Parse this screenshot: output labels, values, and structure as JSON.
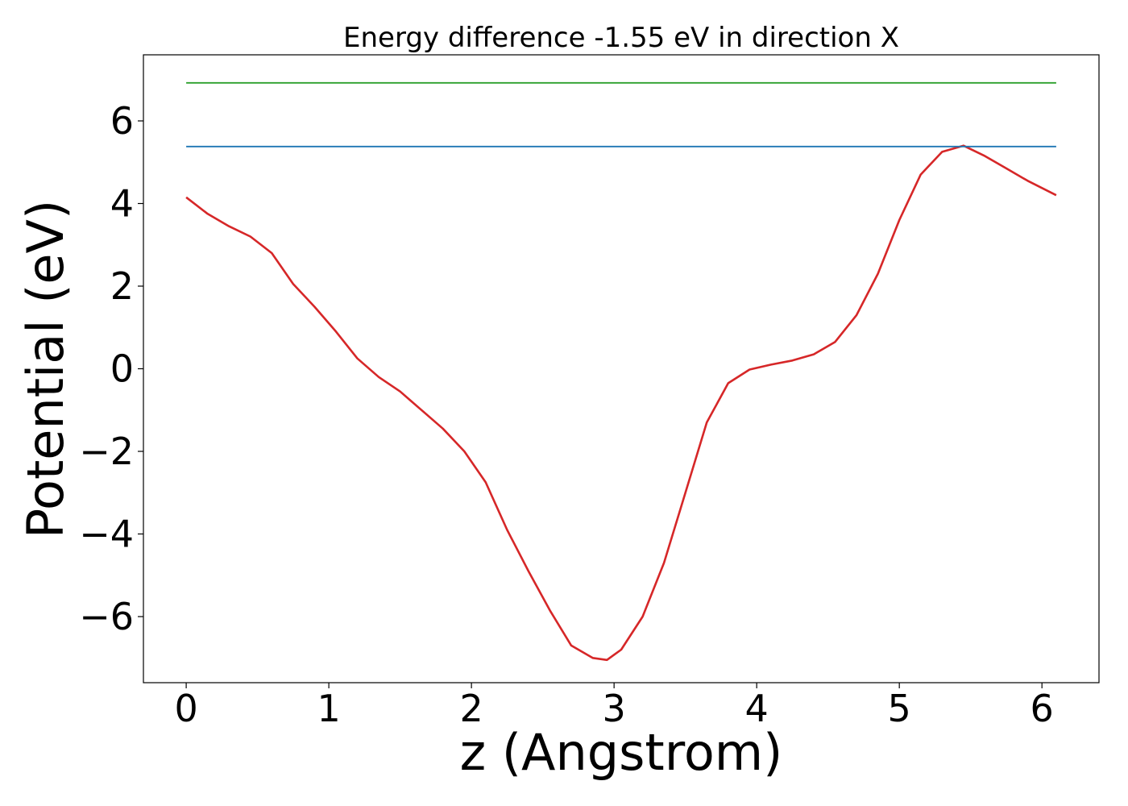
{
  "chart_data": {
    "type": "line",
    "title": "Energy difference -1.55 eV in direction X",
    "xlabel": "z (Angstrom)",
    "ylabel": "Potential (eV)",
    "xlim": [
      -0.3,
      6.4
    ],
    "ylim": [
      -7.6,
      7.6
    ],
    "xticks": [
      0,
      1,
      2,
      3,
      4,
      5,
      6
    ],
    "yticks": [
      -6,
      -4,
      -2,
      0,
      2,
      4,
      6
    ],
    "xtick_labels": [
      "0",
      "1",
      "2",
      "3",
      "4",
      "5",
      "6"
    ],
    "ytick_labels": [
      "−6",
      "−4",
      "−2",
      "0",
      "2",
      "4",
      "6"
    ],
    "grid": false,
    "legend": "none",
    "series": [
      {
        "color": "#d62728",
        "x": [
          0,
          0.15,
          0.3,
          0.45,
          0.6,
          0.75,
          0.9,
          1.05,
          1.2,
          1.35,
          1.5,
          1.65,
          1.8,
          1.95,
          2.1,
          2.25,
          2.4,
          2.55,
          2.7,
          2.85,
          2.95,
          3.05,
          3.2,
          3.35,
          3.5,
          3.65,
          3.8,
          3.95,
          4.1,
          4.25,
          4.4,
          4.55,
          4.7,
          4.85,
          5.0,
          5.15,
          5.3,
          5.45,
          5.6,
          5.75,
          5.9,
          6.1
        ],
        "y": [
          4.15,
          3.75,
          3.45,
          3.2,
          2.8,
          2.05,
          1.5,
          0.9,
          0.25,
          -0.2,
          -0.55,
          -1.0,
          -1.45,
          -2.0,
          -2.75,
          -3.9,
          -4.9,
          -5.85,
          -6.7,
          -7.0,
          -7.05,
          -6.8,
          -6.0,
          -4.7,
          -3.0,
          -1.3,
          -0.35,
          -0.02,
          0.1,
          0.2,
          0.35,
          0.65,
          1.3,
          2.3,
          3.6,
          4.7,
          5.25,
          5.4,
          5.15,
          4.85,
          4.55,
          4.2
        ]
      },
      {
        "color": "#1f77b4",
        "x": [
          0,
          6.1
        ],
        "y": [
          5.38,
          5.38
        ]
      },
      {
        "color": "#2ca02c",
        "x": [
          0,
          6.1
        ],
        "y": [
          6.92,
          6.92
        ]
      }
    ]
  }
}
